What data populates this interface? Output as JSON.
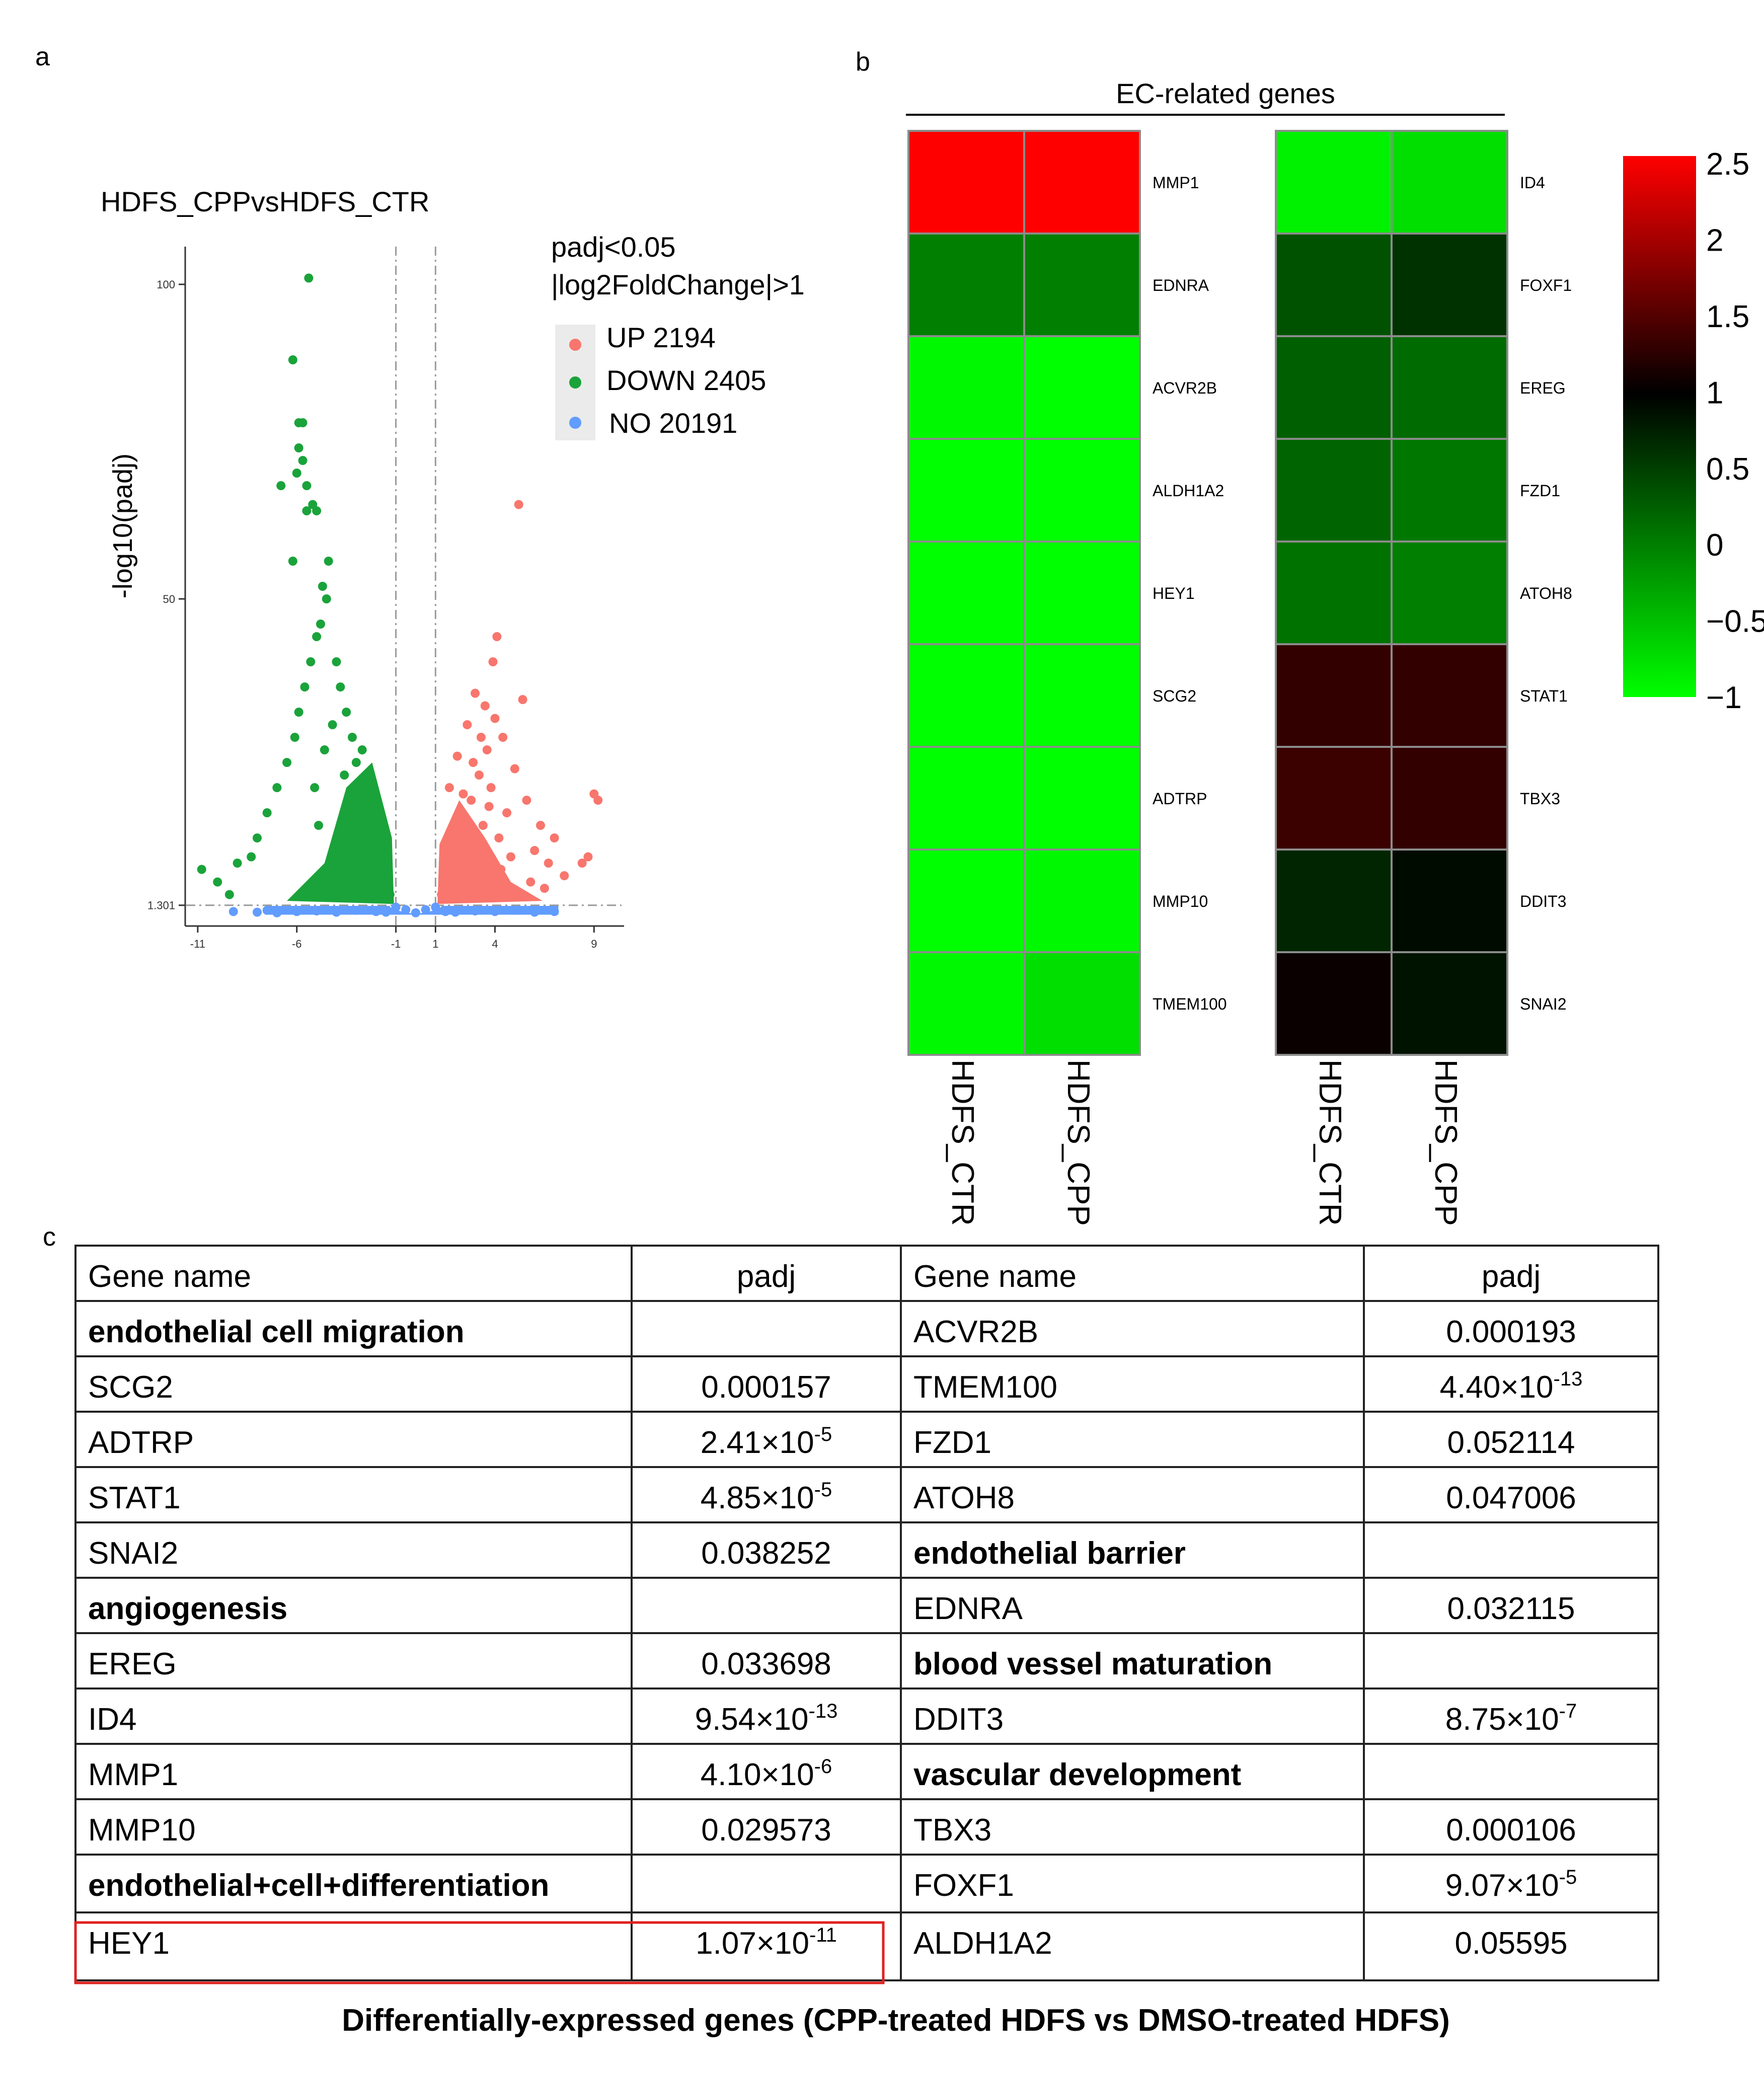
{
  "panel_labels": [
    "a",
    "b",
    "c"
  ],
  "volcano": {
    "title": "HDFS_CPPvsHDFS_CTR",
    "ylabel": "-log10(padj)",
    "legend_title_1": "padj<0.05",
    "legend_title_2": "|log2FoldChange|>1",
    "legend": [
      {
        "label": "UP 2194",
        "color": "#f8766d"
      },
      {
        "label": "DOWN 2405",
        "color": "#1aa33a"
      },
      {
        "label": "NO 20191",
        "color": "#619cff"
      }
    ],
    "ytick_labels": [
      "100",
      "50",
      "1.301"
    ],
    "xtick_labels": [
      "-11",
      "-6",
      "-1",
      "1",
      "4",
      "9"
    ]
  },
  "chart_data": [
    {
      "type": "scatter",
      "title": "HDFS_CPPvsHDFS_CTR",
      "xlabel": "",
      "ylabel": "-log10(padj)",
      "xlim": [
        -11.2,
        9.5
      ],
      "ylim": [
        -2,
        106
      ],
      "xticks": [
        -11,
        -6,
        -1,
        1,
        4,
        9
      ],
      "yticks": [
        100,
        50,
        1.301
      ],
      "thresholds": {
        "x": [
          -1,
          1
        ],
        "y": 1.301
      },
      "series": [
        {
          "name": "UP 2194",
          "color": "#f8766d",
          "points": [
            [
              1.5,
              4
            ],
            [
              1.8,
              8
            ],
            [
              2,
              12
            ],
            [
              2.2,
              6
            ],
            [
              2.5,
              15
            ],
            [
              2.8,
              18
            ],
            [
              3,
              10
            ],
            [
              3.2,
              22
            ],
            [
              3.4,
              14
            ],
            [
              3.6,
              26
            ],
            [
              3.8,
              20
            ],
            [
              4,
              31
            ],
            [
              4.2,
              12
            ],
            [
              4.4,
              28
            ],
            [
              3.5,
              33
            ],
            [
              3.9,
              40
            ],
            [
              4.1,
              44
            ],
            [
              3,
              35
            ],
            [
              2.6,
              30
            ],
            [
              1.7,
              20
            ],
            [
              5.2,
              65
            ],
            [
              5.4,
              34
            ],
            [
              5,
              23
            ],
            [
              5.6,
              18
            ],
            [
              6,
              10
            ],
            [
              6.3,
              14
            ],
            [
              6.7,
              8
            ],
            [
              7,
              12
            ],
            [
              7.5,
              6
            ],
            [
              8.4,
              8
            ],
            [
              8.7,
              9
            ],
            [
              9,
              19
            ],
            [
              9.2,
              18
            ],
            [
              2.1,
              25
            ],
            [
              2.4,
              19
            ],
            [
              3.3,
              28
            ],
            [
              4.6,
              16
            ],
            [
              4.8,
              9
            ],
            [
              1.3,
              3
            ],
            [
              1.6,
              11
            ],
            [
              2.9,
              24
            ],
            [
              3.7,
              17
            ],
            [
              4.3,
              7
            ],
            [
              5.8,
              5
            ],
            [
              6.5,
              4
            ]
          ]
        },
        {
          "name": "DOWN 2405",
          "color": "#1aa33a",
          "points": [
            [
              -5.4,
              101
            ],
            [
              -6.2,
              88
            ],
            [
              -5.9,
              78
            ],
            [
              -5.7,
              78
            ],
            [
              -5.9,
              74
            ],
            [
              -5.7,
              72
            ],
            [
              -6,
              70
            ],
            [
              -6.8,
              68
            ],
            [
              -5.5,
              68
            ],
            [
              -5.2,
              65
            ],
            [
              -5.5,
              64
            ],
            [
              -5,
              64
            ],
            [
              -6.2,
              56
            ],
            [
              -4.4,
              56
            ],
            [
              -4.5,
              50
            ],
            [
              -4.7,
              52
            ],
            [
              -4.8,
              46
            ],
            [
              -5,
              44
            ],
            [
              -5.3,
              40
            ],
            [
              -5.6,
              36
            ],
            [
              -5.9,
              32
            ],
            [
              -6.1,
              28
            ],
            [
              -6.5,
              24
            ],
            [
              -7,
              20
            ],
            [
              -7.5,
              16
            ],
            [
              -8,
              12
            ],
            [
              -8.3,
              9
            ],
            [
              -9,
              8
            ],
            [
              -10.8,
              7
            ],
            [
              -10,
              5
            ],
            [
              -9.4,
              3
            ],
            [
              -4,
              40
            ],
            [
              -3.8,
              36
            ],
            [
              -3.5,
              32
            ],
            [
              -3.2,
              28
            ],
            [
              -3,
              24
            ],
            [
              -2.8,
              20
            ],
            [
              -2.5,
              17
            ],
            [
              -2.2,
              14
            ],
            [
              -2,
              11
            ],
            [
              -1.8,
              8
            ],
            [
              -1.5,
              5
            ],
            [
              -1.3,
              3
            ],
            [
              -4.2,
              30
            ],
            [
              -3.6,
              22
            ],
            [
              -3.3,
              18
            ],
            [
              -4.6,
              26
            ],
            [
              -5.1,
              20
            ],
            [
              -4.9,
              14
            ],
            [
              -3.9,
              12
            ],
            [
              -2.7,
              26
            ],
            [
              -2.4,
              22
            ]
          ]
        },
        {
          "name": "NO 20191",
          "color": "#619cff",
          "points": [
            [
              -9.2,
              0.3
            ],
            [
              -8,
              0.2
            ],
            [
              -7.5,
              0.5
            ],
            [
              -7,
              0.1
            ],
            [
              -6,
              0.3
            ],
            [
              -5,
              0.4
            ],
            [
              -4,
              0.2
            ],
            [
              -3,
              0.5
            ],
            [
              -2,
              0.3
            ],
            [
              -1.5,
              0.2
            ],
            [
              -1,
              1
            ],
            [
              -0.5,
              0.6
            ],
            [
              0,
              0.1
            ],
            [
              0.5,
              0.6
            ],
            [
              1,
              1
            ],
            [
              1.5,
              0.3
            ],
            [
              2,
              0.2
            ],
            [
              3,
              0.4
            ],
            [
              4,
              0.3
            ],
            [
              5,
              0.5
            ],
            [
              6,
              0.2
            ],
            [
              7,
              0.3
            ]
          ]
        }
      ]
    },
    {
      "type": "heatmap",
      "title": "EC-related genes",
      "columns": [
        "HDFS_CTR",
        "HDFS_CPP"
      ],
      "colorbar": {
        "ticks": [
          2.5,
          2,
          1.5,
          1,
          0.5,
          0,
          -0.5,
          -1
        ],
        "tick_labels": [
          "2.5",
          "2",
          "1.5",
          "1",
          "0.5",
          "0",
          "−0.5",
          "−1"
        ],
        "range": [
          -1,
          2.55
        ],
        "colors": [
          "#00ff00",
          "#000000",
          "#ff0000"
        ]
      },
      "blocks": [
        {
          "rows": [
            {
              "gene": "MMP1",
              "values": [
                2.55,
                2.55
              ]
            },
            {
              "gene": "EDNRA",
              "values": [
                0.0,
                0.0
              ]
            },
            {
              "gene": "ACVR2B",
              "values": [
                -0.95,
                -1.0
              ]
            },
            {
              "gene": "ALDH1A2",
              "values": [
                -1.0,
                -1.0
              ]
            },
            {
              "gene": "HEY1",
              "values": [
                -1.0,
                -1.0
              ]
            },
            {
              "gene": "SCG2",
              "values": [
                -1.0,
                -1.0
              ]
            },
            {
              "gene": "ADTRP",
              "values": [
                -1.0,
                -1.0
              ]
            },
            {
              "gene": "MMP10",
              "values": [
                -1.0,
                -0.95
              ]
            },
            {
              "gene": "TMEM100",
              "values": [
                -0.95,
                -0.75
              ]
            }
          ]
        },
        {
          "rows": [
            {
              "gene": "ID4",
              "values": [
                -0.9,
                -0.75
              ]
            },
            {
              "gene": "FOXF1",
              "values": [
                0.35,
                0.6
              ]
            },
            {
              "gene": "EREG",
              "values": [
                0.25,
                0.15
              ]
            },
            {
              "gene": "FZD1",
              "values": [
                0.2,
                0.05
              ]
            },
            {
              "gene": "ATOH8",
              "values": [
                0.1,
                0.0
              ]
            },
            {
              "gene": "STAT1",
              "values": [
                1.3,
                1.3
              ]
            },
            {
              "gene": "TBX3",
              "values": [
                1.35,
                1.3
              ]
            },
            {
              "gene": "DDIT3",
              "values": [
                0.7,
                0.9
              ]
            },
            {
              "gene": "SNAI2",
              "values": [
                1.05,
                0.85
              ]
            }
          ]
        }
      ]
    }
  ],
  "table": {
    "caption": "Differentially-expressed genes (CPP-treated HDFS vs DMSO-treated HDFS)",
    "headers": [
      "Gene name",
      "padj",
      "Gene name",
      "padj"
    ],
    "rows": [
      [
        {
          "t": "endothelial cell migration",
          "bold": true
        },
        {
          "t": ""
        },
        {
          "t": "ACVR2B"
        },
        {
          "t": "0.000193"
        }
      ],
      [
        {
          "t": "SCG2"
        },
        {
          "t": "0.000157"
        },
        {
          "t": "TMEM100"
        },
        {
          "m": "4.40×10",
          "e": "-13"
        }
      ],
      [
        {
          "t": "ADTRP"
        },
        {
          "m": "2.41×10",
          "e": "-5"
        },
        {
          "t": "FZD1"
        },
        {
          "t": "0.052114"
        }
      ],
      [
        {
          "t": "STAT1"
        },
        {
          "m": "4.85×10",
          "e": "-5"
        },
        {
          "t": "ATOH8"
        },
        {
          "t": "0.047006"
        }
      ],
      [
        {
          "t": "SNAI2"
        },
        {
          "t": "0.038252"
        },
        {
          "t": "endothelial barrier",
          "bold": true
        },
        {
          "t": ""
        }
      ],
      [
        {
          "t": "angiogenesis",
          "bold": true
        },
        {
          "t": ""
        },
        {
          "t": "EDNRA"
        },
        {
          "t": "0.032115"
        }
      ],
      [
        {
          "t": "EREG"
        },
        {
          "t": "0.033698"
        },
        {
          "t": "blood vessel maturation",
          "bold": true
        },
        {
          "t": ""
        }
      ],
      [
        {
          "t": "ID4"
        },
        {
          "m": "9.54×10",
          "e": "-13"
        },
        {
          "t": "DDIT3"
        },
        {
          "m": "8.75×10",
          "e": "-7"
        }
      ],
      [
        {
          "t": "MMP1"
        },
        {
          "m": "4.10×10",
          "e": "-6"
        },
        {
          "t": "vascular development",
          "bold": true
        },
        {
          "t": ""
        }
      ],
      [
        {
          "t": "MMP10"
        },
        {
          "t": "0.029573"
        },
        {
          "t": "TBX3"
        },
        {
          "t": "0.000106"
        }
      ],
      [
        {
          "t": "endothelial+cell+differentiation",
          "bold": true
        },
        {
          "t": ""
        },
        {
          "t": "FOXF1"
        },
        {
          "m": "9.07×10",
          "e": "-5"
        }
      ],
      [
        {
          "t": "HEY1"
        },
        {
          "m": "1.07×10",
          "e": "-11"
        },
        {
          "t": "ALDH1A2"
        },
        {
          "t": "0.05595"
        }
      ]
    ],
    "highlight_color": "#e02020"
  }
}
